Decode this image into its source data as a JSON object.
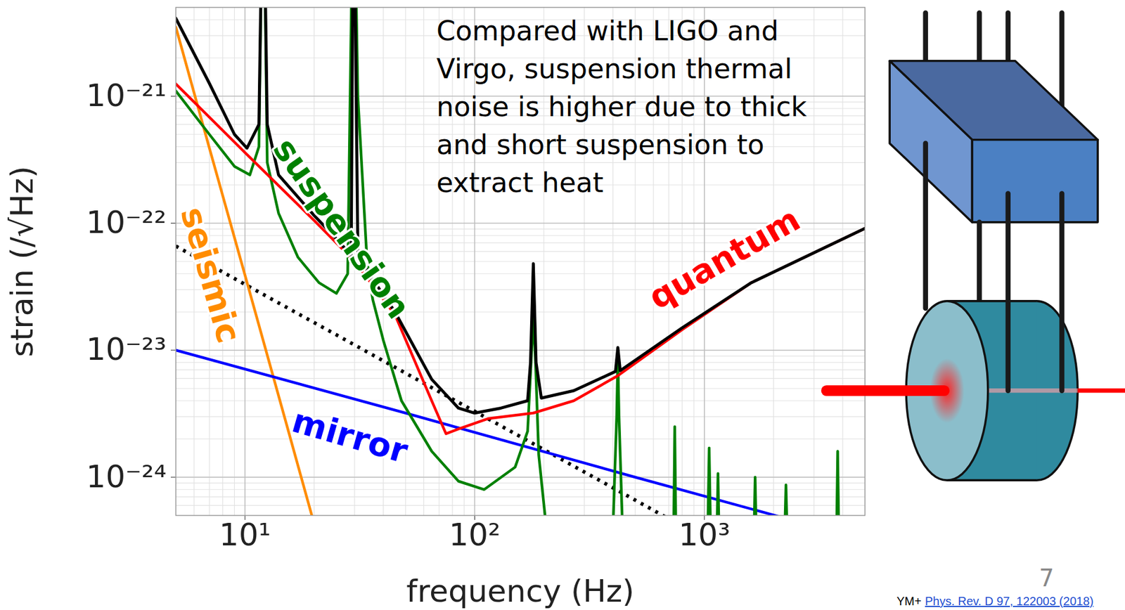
{
  "chart_data": {
    "type": "line",
    "x_label": "frequency (Hz)",
    "y_label": "strain (/√Hz)",
    "log": true,
    "grid": true,
    "xlim": [
      5,
      5000
    ],
    "xticks": [
      {
        "value": 10,
        "label": "10¹"
      },
      {
        "value": 100,
        "label": "10²"
      },
      {
        "value": 1000,
        "label": "10³"
      }
    ],
    "ylim": [
      5e-25,
      5e-21
    ],
    "yticks": [
      {
        "value": 1e-24,
        "label": "10⁻²⁴"
      },
      {
        "value": 1e-23,
        "label": "10⁻²³"
      },
      {
        "value": 1e-22,
        "label": "10⁻²²"
      },
      {
        "value": 1e-21,
        "label": "10⁻²¹"
      }
    ],
    "annotation": "Compared with LIGO and Virgo, suspension thermal noise is higher due to thick and short suspension to extract heat",
    "series": [
      {
        "name": null,
        "color": "#000000",
        "line_style": "dotted",
        "x": [
          5,
          50,
          500,
          700
        ],
        "values": [
          6.6e-23,
          6.6e-24,
          6.6e-25,
          4.7e-25
        ]
      },
      {
        "name": "seismic",
        "color": "#ff8c00",
        "line_style": "solid",
        "x": [
          5,
          7,
          10,
          15,
          20
        ],
        "values": [
          3.5e-21,
          3.9e-22,
          3.9e-23,
          2.8e-24,
          4.3e-25
        ]
      },
      {
        "name": "mirror",
        "color": "#0000ff",
        "line_style": "solid",
        "x": [
          5,
          50,
          500,
          5000
        ],
        "values": [
          1e-23,
          3.2e-24,
          1e-24,
          3.2e-25
        ]
      },
      {
        "name": "suspension",
        "color": "#008000",
        "line_style": "solid",
        "x": [
          5,
          7,
          9,
          10.5,
          11.5,
          12,
          12.5,
          14,
          17,
          21,
          25,
          28,
          29.7,
          31,
          34,
          36,
          40,
          48,
          65,
          85,
          110,
          150,
          170,
          176,
          180,
          184,
          190,
          205,
          400,
          415,
          420,
          425,
          440,
          735,
          743,
          751,
          1035,
          1049,
          1063,
          1135,
          1146,
          1157,
          1646,
          1663,
          1680,
          2240,
          2265,
          2290,
          3765,
          3804,
          3843
        ],
        "values": [
          1.1e-21,
          5e-22,
          2.8e-22,
          2.4e-22,
          4e-22,
          1e-19,
          3e-22,
          1.2e-22,
          5.4e-23,
          3.4e-23,
          2.8e-23,
          4e-23,
          1e-19,
          1e-21,
          5e-23,
          2.5e-23,
          1.2e-23,
          4e-24,
          1.6e-24,
          9.3e-25,
          8e-25,
          1.2e-24,
          2.3e-24,
          8e-24,
          1.9e-23,
          8e-24,
          1.5e-24,
          4e-25,
          4e-25,
          3e-24,
          8.7e-24,
          3e-24,
          4e-25,
          4e-25,
          2.5e-24,
          4e-25,
          4e-25,
          1.7e-24,
          4e-25,
          4e-25,
          1.07e-24,
          4e-25,
          4e-25,
          1e-24,
          4e-25,
          4e-25,
          8.7e-25,
          4e-25,
          4e-25,
          1.6e-24,
          4e-25
        ]
      },
      {
        "name": "quantum",
        "color": "#ff0000",
        "line_style": "solid",
        "x": [
          5,
          10,
          20,
          30,
          45,
          65,
          75,
          85,
          115,
          180,
          270,
          420,
          800,
          1600,
          5000
        ],
        "values": [
          1.25e-21,
          3.6e-22,
          1.05e-22,
          5e-23,
          1.9e-23,
          4e-24,
          2.2e-24,
          2.4e-24,
          2.9e-24,
          3.2e-24,
          4e-24,
          6.3e-24,
          1.45e-23,
          3.4e-23,
          9.1e-23
        ]
      },
      {
        "name": null,
        "color": "#000000",
        "line_style": "solid",
        "x": [
          5,
          7,
          9,
          10.2,
          11.5,
          12,
          12.5,
          14,
          20,
          26,
          29,
          29.7,
          31,
          34,
          45,
          65,
          85,
          100,
          130,
          170,
          175,
          180,
          185,
          195,
          270,
          410,
          420,
          430,
          800,
          1600,
          5000
        ],
        "values": [
          4.1e-21,
          1.26e-21,
          5e-22,
          3.9e-22,
          6e-22,
          1e-19,
          6e-22,
          2.4e-22,
          1.15e-22,
          7e-23,
          5.5e-23,
          1e-19,
          6e-23,
          4.2e-23,
          2e-23,
          5.9e-24,
          3.5e-24,
          3.2e-24,
          3.5e-24,
          4e-24,
          8e-24,
          4.8e-23,
          8e-24,
          4.2e-24,
          4.8e-24,
          6.8e-24,
          1.05e-23,
          6.9e-24,
          1.5e-23,
          3.4e-23,
          9.1e-23
        ]
      }
    ],
    "source": {
      "author": "YM+",
      "reference": "Phys. Rev. D 97, 122003 (2018)"
    },
    "page_number": 7
  }
}
